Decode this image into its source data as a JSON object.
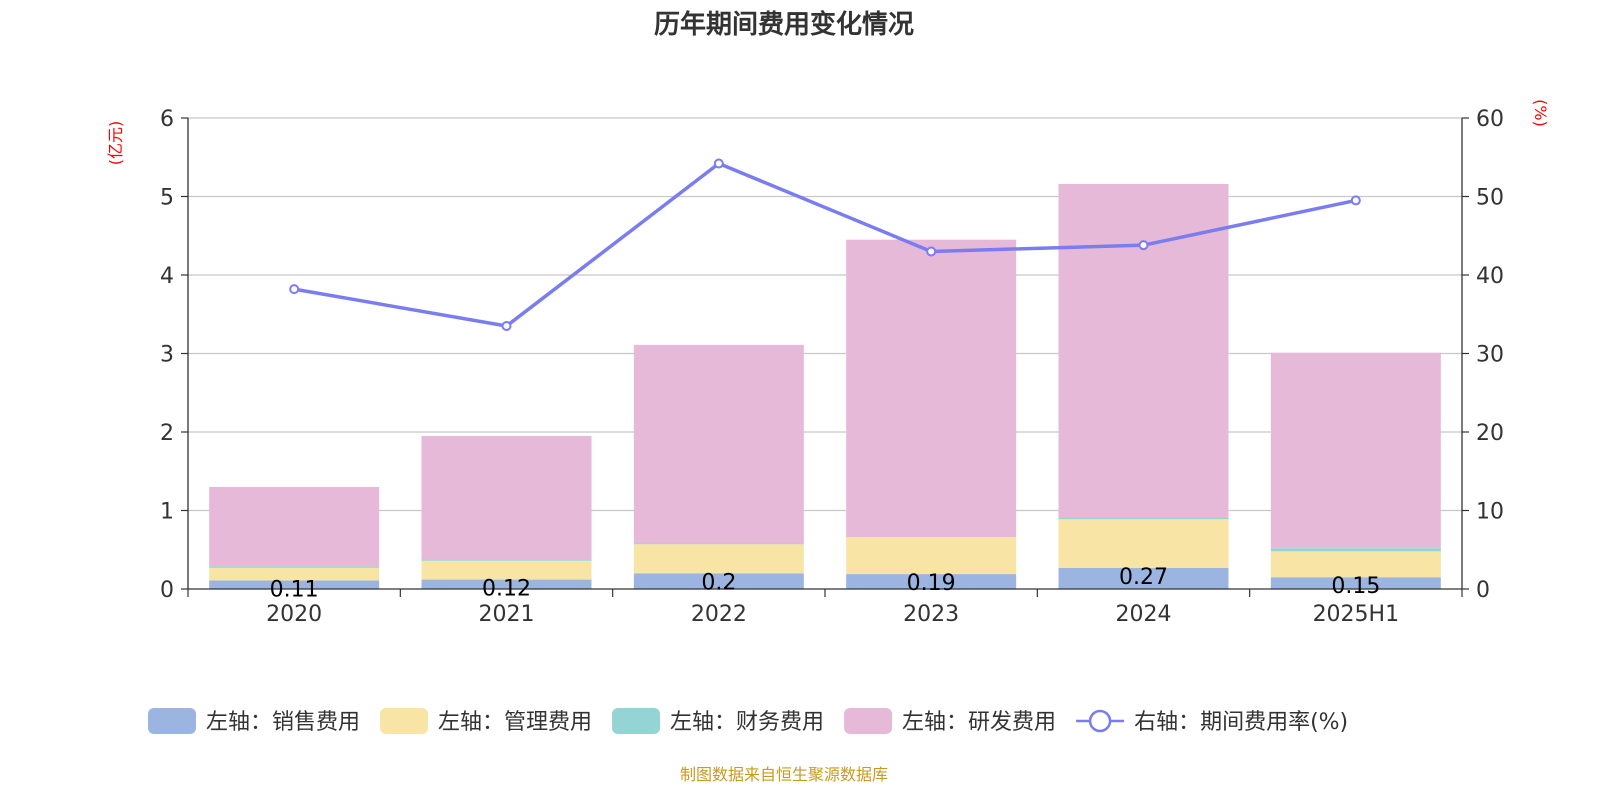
{
  "chart_data": {
    "type": "bar",
    "title": "历年期间费用变化情况",
    "categories": [
      "2020",
      "2021",
      "2022",
      "2023",
      "2024",
      "2025H1"
    ],
    "left_axis": {
      "unit": "(亿元)",
      "ylim": [
        0,
        6
      ],
      "ticks": [
        "0",
        "1",
        "2",
        "3",
        "4",
        "5",
        "6"
      ]
    },
    "right_axis": {
      "unit": "(%)",
      "ylim": [
        0,
        60
      ],
      "ticks": [
        "0",
        "10",
        "20",
        "30",
        "40",
        "50",
        "60"
      ]
    },
    "series": [
      {
        "name": "左轴：销售费用",
        "type": "bar",
        "axis": "left",
        "color": "#9bb5e0",
        "values": [
          0.11,
          0.12,
          0.2,
          0.19,
          0.27,
          0.15
        ],
        "show_labels": true
      },
      {
        "name": "左轴：管理费用",
        "type": "bar",
        "axis": "left",
        "color": "#f8e5a6",
        "values": [
          0.16,
          0.24,
          0.37,
          0.47,
          0.62,
          0.33
        ],
        "show_labels": false
      },
      {
        "name": "左轴：财务费用",
        "type": "bar",
        "axis": "left",
        "color": "#95d4d4",
        "values": [
          0.02,
          0.02,
          0.01,
          0.0,
          0.02,
          0.04
        ],
        "show_labels": false
      },
      {
        "name": "左轴：研发费用",
        "type": "bar",
        "axis": "left",
        "color": "#e7b9d9",
        "values": [
          1.01,
          1.57,
          2.53,
          3.79,
          4.25,
          2.49
        ],
        "show_labels": false
      },
      {
        "name": "右轴：期间费用率(%)",
        "type": "line",
        "axis": "right",
        "color": "#7a7df0",
        "values": [
          38.2,
          33.5,
          54.2,
          43.0,
          43.8,
          49.5
        ]
      }
    ],
    "grid": true,
    "legend_position": "bottom"
  },
  "source_note": "制图数据来自恒生聚源数据库"
}
